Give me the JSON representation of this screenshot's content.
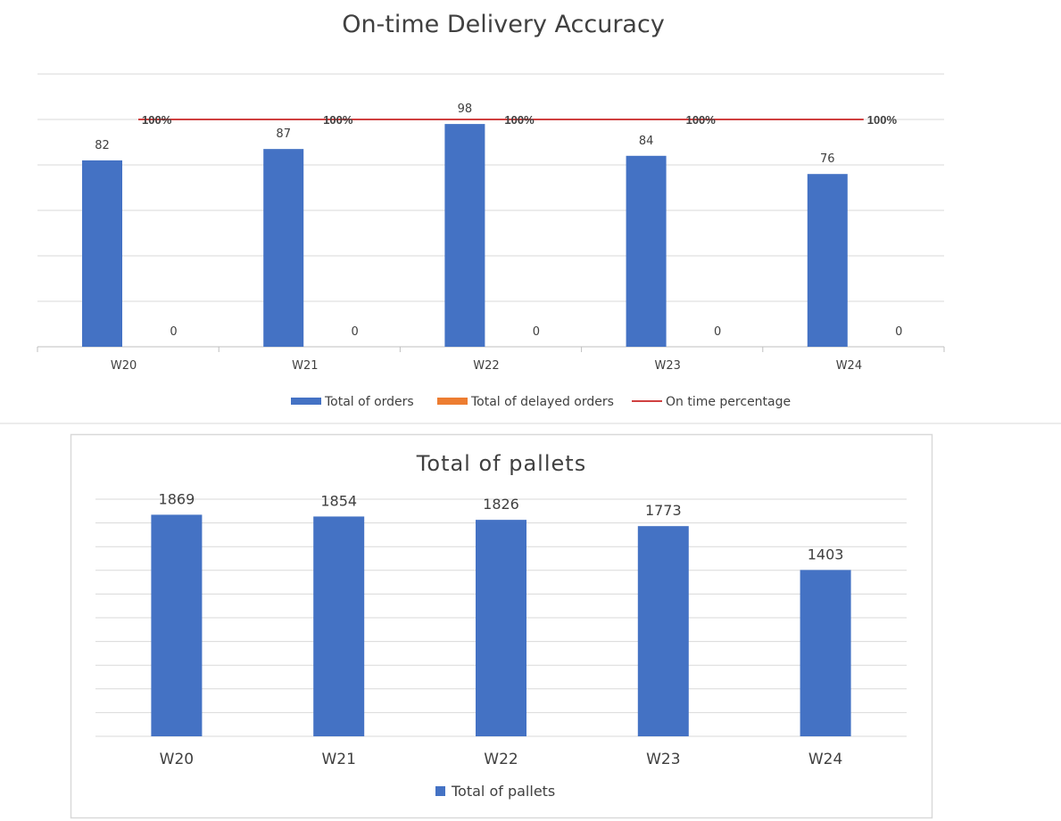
{
  "chart_data": [
    {
      "type": "bar",
      "title": "On-time Delivery Accuracy",
      "categories": [
        "W20",
        "W21",
        "W22",
        "W23",
        "W24"
      ],
      "ylim": [
        0,
        120
      ],
      "grid": true,
      "legend_placement": "bottom",
      "series": [
        {
          "name": "Total of orders",
          "kind": "bar",
          "color": "#4472C4",
          "values": [
            82,
            87,
            98,
            84,
            76
          ]
        },
        {
          "name": "Total of delayed orders",
          "kind": "bar",
          "color": "#ED7D31",
          "values": [
            0,
            0,
            0,
            0,
            0
          ]
        },
        {
          "name": "On time percentage",
          "kind": "line",
          "color": "#C00000",
          "values": [
            1,
            1,
            1,
            1,
            1
          ],
          "labels": [
            "100%",
            "100%",
            "100%",
            "100%",
            "100%"
          ]
        }
      ]
    },
    {
      "type": "bar",
      "title": "Total of pallets",
      "categories": [
        "W20",
        "W21",
        "W22",
        "W23",
        "W24"
      ],
      "ylim": [
        0,
        2000
      ],
      "grid": true,
      "legend_placement": "bottom",
      "series": [
        {
          "name": "Total of pallets",
          "kind": "bar",
          "color": "#4472C4",
          "values": [
            1869,
            1854,
            1826,
            1773,
            1403
          ]
        }
      ]
    }
  ]
}
